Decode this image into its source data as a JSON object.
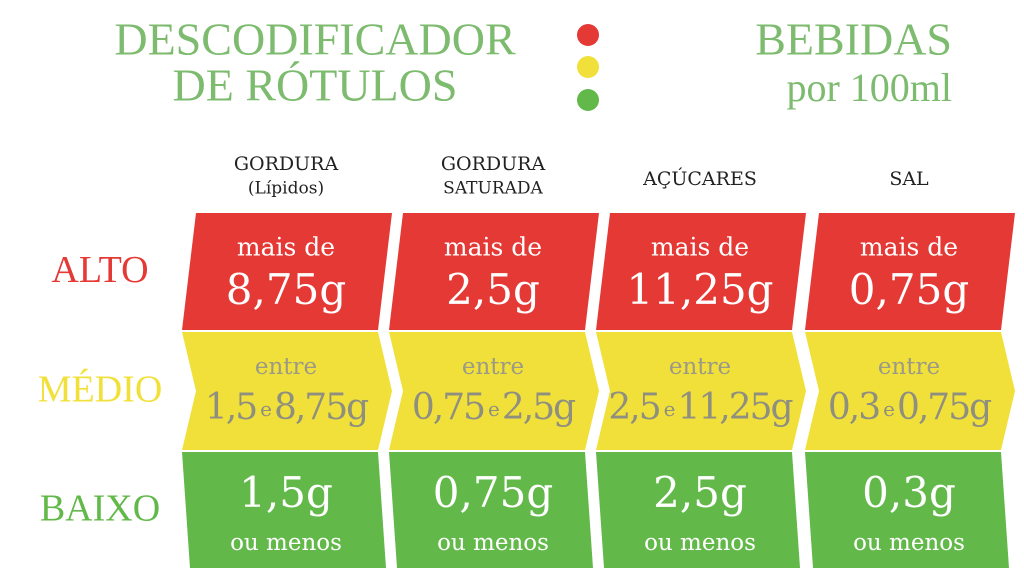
{
  "header": {
    "title": [
      "DESCODIFICADOR",
      "DE RÓTULOS"
    ],
    "subtitle": [
      "BEBIDAS",
      "por 100ml"
    ]
  },
  "table": {
    "columns": [
      [
        "GORDURA",
        "(Lípidos)"
      ],
      [
        "GORDURA",
        "SATURADA"
      ],
      [
        "AÇÚCARES"
      ],
      [
        "SAL"
      ]
    ],
    "rows": [
      {
        "level": "ALTO",
        "cells": [
          {
            "prefix": "mais de",
            "amount": "8,75g"
          },
          {
            "prefix": "mais de",
            "amount": "2,5g"
          },
          {
            "prefix": "mais de",
            "amount": "11,25g"
          },
          {
            "prefix": "mais de",
            "amount": "0,75g"
          }
        ]
      },
      {
        "level": "MÉDIO",
        "cells": [
          {
            "prefix": "entre",
            "from": "1,5",
            "conj": "e",
            "to": "8,75g"
          },
          {
            "prefix": "entre",
            "from": "0,75",
            "conj": "e",
            "to": "2,5g"
          },
          {
            "prefix": "entre",
            "from": "2,5",
            "conj": "e",
            "to": "11,25g"
          },
          {
            "prefix": "entre",
            "from": "0,3",
            "conj": "e",
            "to": "0,75g"
          }
        ]
      },
      {
        "level": "BAIXO",
        "cells": [
          {
            "amount": "1,5g",
            "suffix": "ou menos"
          },
          {
            "amount": "0,75g",
            "suffix": "ou menos"
          },
          {
            "amount": "2,5g",
            "suffix": "ou menos"
          },
          {
            "amount": "0,3g",
            "suffix": "ou menos"
          }
        ]
      }
    ]
  }
}
